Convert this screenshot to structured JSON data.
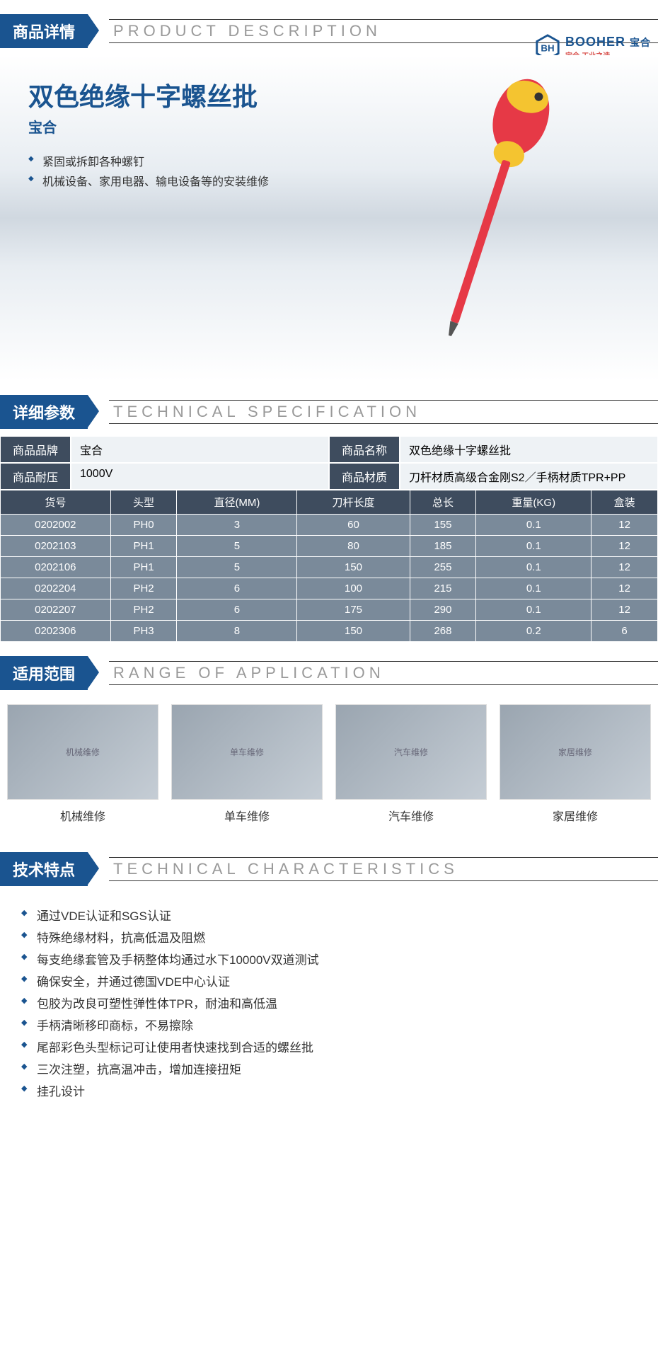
{
  "logo": {
    "brand": "BOOHER",
    "cn": "宝合",
    "tagline": "宝合·工业之选"
  },
  "sections": {
    "s1": {
      "tab": "商品详情",
      "sub": "PRODUCT DESCRIPTION"
    },
    "s2": {
      "tab": "详细参数",
      "sub": "TECHNICAL SPECIFICATION"
    },
    "s3": {
      "tab": "适用范围",
      "sub": "RANGE OF APPLICATION"
    },
    "s4": {
      "tab": "技术特点",
      "sub": "TECHNICAL CHARACTERISTICS"
    }
  },
  "hero": {
    "title": "双色绝缘十字螺丝批",
    "brand": "宝合",
    "bullets": [
      "紧固或拆卸各种螺钉",
      "机械设备、家用电器、输电设备等的安装维修"
    ]
  },
  "spec": {
    "labels": {
      "brand": "商品品牌",
      "name": "商品名称",
      "voltage": "商品耐压",
      "material": "商品材质"
    },
    "values": {
      "brand": "宝合",
      "name": "双色绝缘十字螺丝批",
      "voltage": "1000V",
      "material": "刀杆材质高级合金刚S2／手柄材质TPR+PP"
    }
  },
  "table": {
    "headers": [
      "货号",
      "头型",
      "直径(MM)",
      "刀杆长度",
      "总长",
      "重量(KG)",
      "盒装"
    ],
    "rows": [
      [
        "0202002",
        "PH0",
        "3",
        "60",
        "155",
        "0.1",
        "12"
      ],
      [
        "0202103",
        "PH1",
        "5",
        "80",
        "185",
        "0.1",
        "12"
      ],
      [
        "0202106",
        "PH1",
        "5",
        "150",
        "255",
        "0.1",
        "12"
      ],
      [
        "0202204",
        "PH2",
        "6",
        "100",
        "215",
        "0.1",
        "12"
      ],
      [
        "0202207",
        "PH2",
        "6",
        "175",
        "290",
        "0.1",
        "12"
      ],
      [
        "0202306",
        "PH3",
        "8",
        "150",
        "268",
        "0.2",
        "6"
      ]
    ]
  },
  "applications": [
    "机械维修",
    "单车维修",
    "汽车维修",
    "家居维修"
  ],
  "characteristics": [
    "通过VDE认证和SGS认证",
    "特殊绝缘材料，抗高低温及阻燃",
    "每支绝缘套管及手柄整体均通过水下10000V双道测试",
    "确保安全，并通过德国VDE中心认证",
    "包胶为改良可塑性弹性体TPR，耐油和高低温",
    "手柄清晰移印商标，不易擦除",
    "尾部彩色头型标记可让使用者快速找到合适的螺丝批",
    "三次注塑，抗高温冲击，增加连接扭矩",
    "挂孔设计"
  ],
  "colors": {
    "primary": "#1a5490",
    "tableHeader": "#3e4c5e",
    "tableRow": "#7a8a9a"
  }
}
